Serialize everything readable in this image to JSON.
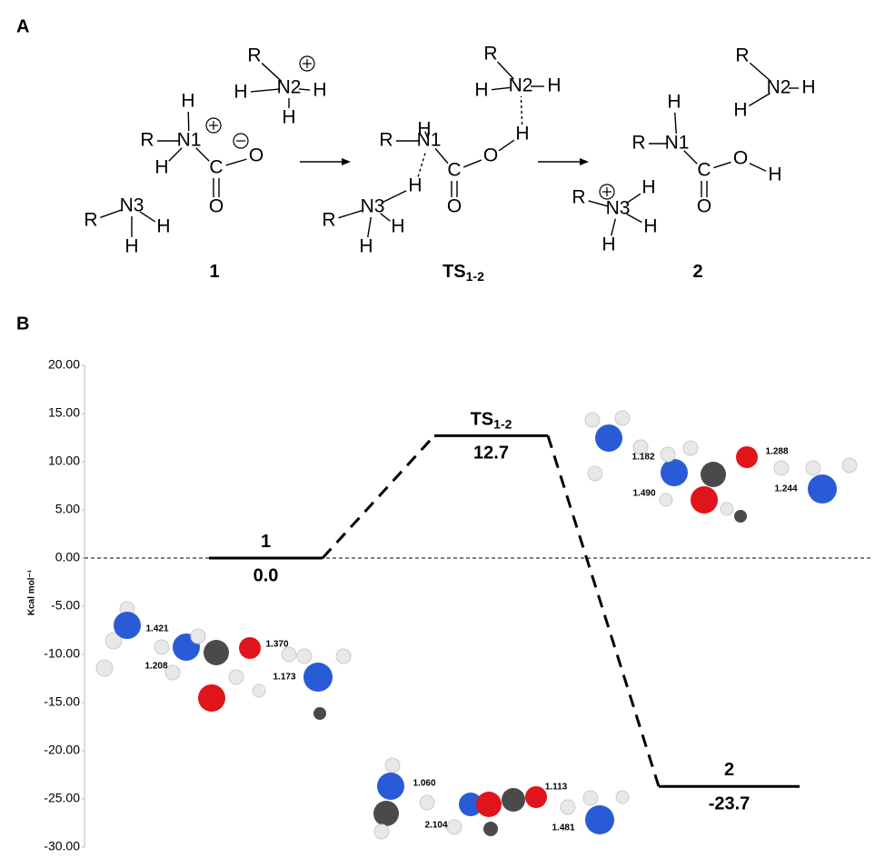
{
  "panel_a": {
    "label": "A",
    "structures": [
      {
        "atoms": [
          "R",
          "H",
          "N2",
          "H",
          "H",
          "H",
          "R",
          "N1",
          "H",
          "C",
          "O",
          "O",
          "R",
          "N3",
          "H",
          "H"
        ],
        "label": "1"
      },
      {
        "atoms": [
          "R",
          "H",
          "N2",
          "H",
          "H",
          "H",
          "R",
          "N1",
          "C",
          "O",
          "O",
          "H",
          "R",
          "N3",
          "H",
          "H"
        ],
        "label": "TS",
        "label_sub": "1-2"
      },
      {
        "atoms": [
          "R",
          "H",
          "N2",
          "H",
          "H",
          "R",
          "N1",
          "C",
          "O",
          "H",
          "O",
          "R",
          "N3",
          "H",
          "H",
          "H"
        ],
        "label": "2"
      }
    ]
  },
  "chart_data": {
    "type": "energy-profile",
    "label": "B",
    "ylabel": "Kcal mol⁻¹",
    "categories": [
      "1",
      "TS",
      "2"
    ],
    "category_subscripts": [
      null,
      "1-2",
      null
    ],
    "values": [
      0,
      12.7,
      -23.7
    ],
    "value_labels": [
      "0.0",
      "12.7",
      "-23.7"
    ],
    "color": "#000000",
    "ylim": [
      -30,
      20
    ],
    "yticks": [
      {
        "value": -30,
        "label": "-30.00"
      },
      {
        "value": -25,
        "label": "-25.00"
      },
      {
        "value": -20,
        "label": "-20.00"
      },
      {
        "value": -15,
        "label": "-15.00"
      },
      {
        "value": -10,
        "label": "-10.00"
      },
      {
        "value": -5,
        "label": "-5.00"
      },
      {
        "value": 0,
        "label": "0.00"
      },
      {
        "value": 5,
        "label": "5.00"
      },
      {
        "value": 10,
        "label": "10.00"
      },
      {
        "value": 15,
        "label": "15.00"
      },
      {
        "value": 20,
        "label": "20.00"
      }
    ],
    "zero_line": true
  },
  "molecular_models": [
    {
      "distances": [
        "1.421",
        "1.208",
        "1.370",
        "1.173"
      ]
    },
    {
      "distances": [
        "1.182",
        "1.490",
        "1.288",
        "1.244"
      ]
    },
    {
      "distances": [
        "1.060",
        "2.104",
        "1.113",
        "1.481"
      ]
    }
  ]
}
